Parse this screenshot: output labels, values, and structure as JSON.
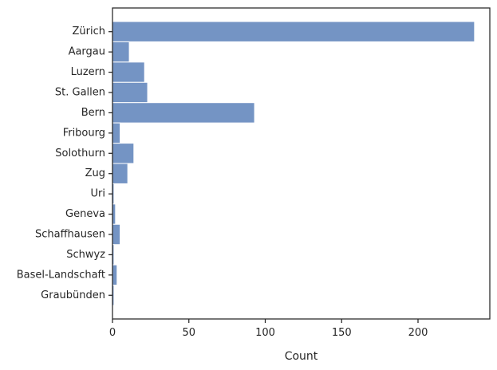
{
  "chart_data": {
    "type": "bar",
    "orientation": "horizontal",
    "categories": [
      "Zürich",
      "Aargau",
      "Luzern",
      "St. Gallen",
      "Bern",
      "Fribourg",
      "Solothurn",
      "Zug",
      "Uri",
      "Geneva",
      "Schaffhausen",
      "Schwyz",
      "Basel-Landschaft",
      "Graubünden"
    ],
    "values": [
      237,
      11,
      21,
      23,
      93,
      5,
      14,
      10,
      1,
      2,
      5,
      1,
      3,
      1
    ],
    "xlabel": "Count",
    "ylabel": "",
    "xlim": [
      0,
      247
    ],
    "xticks": [
      0,
      50,
      100,
      150,
      200
    ],
    "grid": false,
    "bar_color": "#7494c4"
  }
}
